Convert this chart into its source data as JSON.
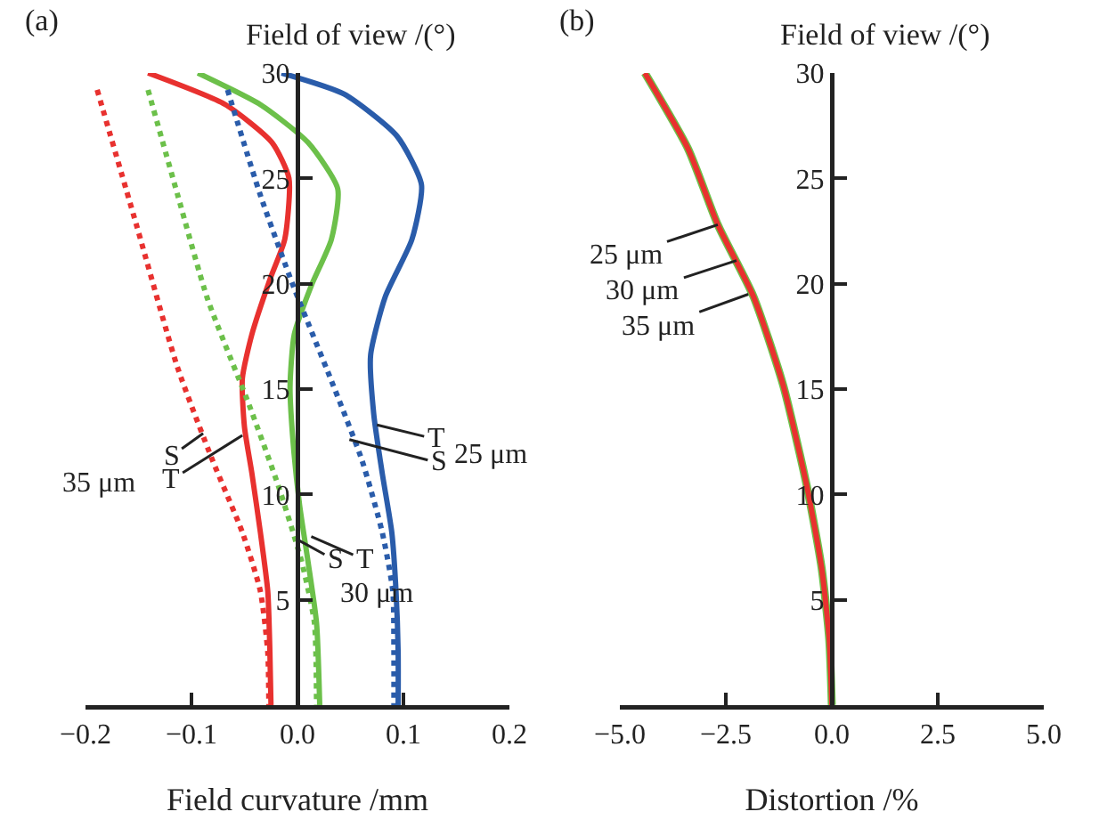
{
  "chart_data": [
    {
      "type": "line",
      "ylabel": "Field of view /(°)",
      "xlabel": "Field curvature /mm",
      "xlim": [
        -0.2,
        0.2
      ],
      "xticks": [
        {
          "value": -0.2,
          "label": "−0.2"
        },
        {
          "value": -0.1,
          "label": "−0.1"
        },
        {
          "value": 0,
          "label": "0.0"
        },
        0.1,
        0.2
      ],
      "ylim": [
        0,
        30
      ],
      "yticks": [
        5,
        10,
        15,
        20,
        25,
        30
      ],
      "grid": false,
      "series": [
        {
          "color": "#e8312f",
          "line_style": "solid",
          "x": [
            -0.141,
            -0.068,
            -0.024,
            -0.008,
            -0.012,
            -0.026,
            -0.043,
            -0.052,
            -0.05,
            -0.043,
            -0.035,
            -0.028,
            -0.026,
            -0.025
          ],
          "values": [
            30,
            28.5,
            26.7,
            25,
            22.1,
            20.2,
            17.6,
            15.5,
            13.2,
            11,
            8.2,
            5.4,
            2.5,
            0
          ]
        },
        {
          "color": "#e8312f",
          "line_style": "dotted",
          "x": [
            -0.189,
            -0.152,
            -0.113,
            -0.08,
            -0.052,
            -0.035,
            -0.028,
            -0.027
          ],
          "values": [
            29.2,
            22.8,
            16,
            11.6,
            8.2,
            5.4,
            2.5,
            0
          ]
        },
        {
          "color": "#6cc04a",
          "line_style": "solid",
          "x": [
            -0.094,
            -0.035,
            0.01,
            0.038,
            0.032,
            0.013,
            -0.003,
            -0.007,
            -0.004,
            0.002,
            0.01,
            0.018,
            0.021
          ],
          "values": [
            30,
            28.5,
            26.7,
            24.5,
            22.1,
            19.9,
            17.6,
            15.1,
            12.4,
            9.5,
            6.8,
            3.9,
            0
          ]
        },
        {
          "color": "#6cc04a",
          "line_style": "dotted",
          "x": [
            -0.141,
            -0.113,
            -0.085,
            -0.046,
            -0.018,
            0.004,
            0.016,
            0.018
          ],
          "values": [
            29.2,
            24.2,
            19.3,
            14.3,
            10.4,
            6.8,
            3.9,
            0
          ]
        },
        {
          "color": "#2a5caa",
          "line_style": "solid",
          "x": [
            -0.015,
            0.044,
            0.094,
            0.117,
            0.108,
            0.083,
            0.069,
            0.072,
            0.08,
            0.089,
            0.093,
            0.095,
            0.095
          ],
          "values": [
            30,
            29,
            27,
            24.7,
            22.1,
            19.4,
            16.6,
            13.8,
            11,
            8.2,
            5.4,
            2.5,
            0
          ]
        },
        {
          "color": "#2a5caa",
          "line_style": "dotted",
          "x": [
            -0.066,
            -0.035,
            -0.004,
            0.032,
            0.061,
            0.08,
            0.09,
            0.091,
            0.091
          ],
          "values": [
            29.2,
            24.2,
            19.9,
            15.4,
            11.6,
            8.2,
            5.4,
            2.5,
            0
          ]
        }
      ],
      "annotations": [
        "(a)",
        {
          "text": "S",
          "x": -0.089,
          "y": 12.9
        },
        {
          "text": "T",
          "x": -0.052,
          "y": 12.8
        },
        "35 μm",
        {
          "text": "T",
          "x": 0.075,
          "y": 13.3
        },
        {
          "text": "S",
          "x": 0.049,
          "y": 12.6
        },
        "25 μm",
        {
          "text": "S",
          "x": 0.002,
          "y": 7.8
        },
        {
          "text": "T",
          "x": 0.013,
          "y": 8.0
        },
        "30 μm"
      ]
    },
    {
      "type": "line",
      "ylabel": "Field of view /(°)",
      "xlabel": "Distortion /%",
      "xlim": [
        -5,
        5
      ],
      "xticks": [
        {
          "value": -5,
          "label": "−5.0"
        },
        {
          "value": -2.5,
          "label": "−2.5"
        },
        {
          "value": 0,
          "label": "0.0"
        },
        2.5,
        {
          "value": 5,
          "label": "5.0"
        }
      ],
      "ylim": [
        0,
        30
      ],
      "yticks": [
        5,
        10,
        15,
        20,
        25,
        30
      ],
      "grid": false,
      "series": [
        {
          "color": "#6cc04a",
          "line_style": "solid",
          "x": [
            -4.41,
            -3.39,
            -2.69,
            -1.85,
            -1.15,
            -0.59,
            -0.24,
            -0.06,
            0
          ],
          "values": [
            30,
            26.4,
            22.8,
            19.4,
            15.2,
            10.4,
            6.5,
            3.1,
            0
          ]
        },
        {
          "color": "#e8312f",
          "line_style": "solid",
          "x": [
            -4.41,
            -3.39,
            -2.69,
            -1.85,
            -1.15,
            -0.59,
            -0.24,
            -0.06,
            0
          ],
          "values": [
            30,
            26.4,
            22.8,
            19.4,
            15.2,
            10.4,
            6.5,
            3.1,
            0
          ]
        }
      ],
      "annotations": [
        "(b)",
        {
          "text": "25 μm",
          "x": -2.69,
          "y": 22.8
        },
        {
          "text": "30 μm",
          "x": -2.25,
          "y": 21.1
        },
        {
          "text": "35 μm",
          "x": -1.97,
          "y": 19.5
        }
      ]
    }
  ]
}
